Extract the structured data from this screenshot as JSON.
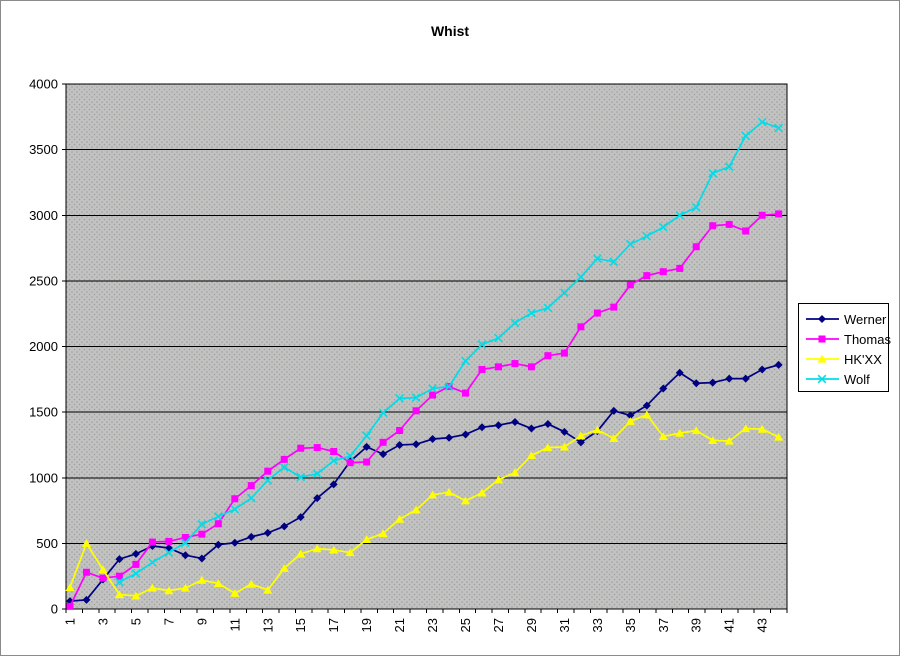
{
  "window": {
    "background_color": "#ffffff",
    "border_color": "#8a8a8a"
  },
  "chart_data": {
    "type": "line",
    "title": "Whist",
    "xlabel": "",
    "ylabel": "",
    "ylim": [
      0,
      4000
    ],
    "y_tick_interval": 500,
    "y_tick_labels": [
      "0",
      "500",
      "1000",
      "1500",
      "2000",
      "2500",
      "3000",
      "3500",
      "4000"
    ],
    "x_categories_count": 44,
    "x_tick_labels": [
      "1",
      "3",
      "5",
      "7",
      "9",
      "11",
      "13",
      "15",
      "17",
      "19",
      "21",
      "23",
      "25",
      "27",
      "29",
      "31",
      "33",
      "35",
      "37",
      "39",
      "41",
      "43"
    ],
    "grid": "horizontal-major",
    "legend_position": "right",
    "plot_background_color": "#c2c2c2",
    "plot_dot_color": "#99a096",
    "gridline_color": "#000000",
    "axis_color": "#000000",
    "series": [
      {
        "name": "Werner",
        "color": "#000080",
        "marker": "diamond",
        "values": [
          60,
          70,
          225,
          380,
          420,
          480,
          465,
          410,
          385,
          490,
          505,
          550,
          580,
          630,
          700,
          845,
          950,
          1125,
          1235,
          1180,
          1250,
          1255,
          1295,
          1305,
          1330,
          1385,
          1400,
          1425,
          1375,
          1410,
          1350,
          1270,
          1355,
          1510,
          1475,
          1550,
          1680,
          1800,
          1720,
          1725,
          1755,
          1755,
          1825,
          1860
        ]
      },
      {
        "name": "Thomas",
        "color": "#ff00ff",
        "marker": "square",
        "values": [
          20,
          280,
          235,
          250,
          340,
          510,
          515,
          545,
          570,
          650,
          840,
          940,
          1050,
          1140,
          1225,
          1230,
          1200,
          1115,
          1120,
          1270,
          1360,
          1510,
          1630,
          1695,
          1645,
          1825,
          1845,
          1870,
          1845,
          1930,
          1950,
          2150,
          2255,
          2300,
          2470,
          2540,
          2570,
          2595,
          2760,
          2920,
          2930,
          2880,
          3000,
          3010
        ]
      },
      {
        "name": "HK'XX",
        "color": "#ffff00",
        "marker": "triangle",
        "values": [
          165,
          500,
          300,
          110,
          100,
          160,
          140,
          160,
          220,
          195,
          120,
          190,
          145,
          310,
          420,
          460,
          450,
          430,
          530,
          575,
          685,
          755,
          870,
          890,
          825,
          885,
          985,
          1040,
          1170,
          1230,
          1235,
          1320,
          1365,
          1300,
          1430,
          1480,
          1315,
          1340,
          1360,
          1285,
          1280,
          1375,
          1370,
          1310
        ]
      },
      {
        "name": "Wolf",
        "color": "#00dde8",
        "marker": "x",
        "values": [
          null,
          null,
          null,
          205,
          270,
          355,
          430,
          505,
          645,
          705,
          760,
          845,
          980,
          1080,
          1005,
          1030,
          1130,
          1165,
          1320,
          1495,
          1605,
          1610,
          1680,
          1695,
          1890,
          2015,
          2065,
          2180,
          2255,
          2295,
          2410,
          2530,
          2670,
          2645,
          2780,
          2840,
          2910,
          3000,
          3060,
          3320,
          3370,
          3605,
          3710,
          3665
        ]
      }
    ]
  }
}
